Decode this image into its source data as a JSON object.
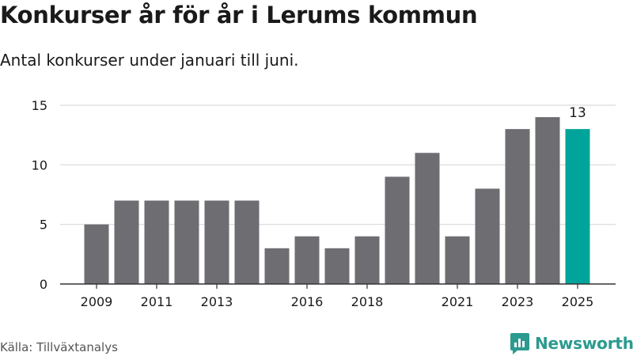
{
  "title": "Konkurser år för år i Lerums kommun",
  "subtitle": "Antal konkurser under januari till juni.",
  "source": "Källa: Tillväxtanalys",
  "brand": "Newsworthy",
  "colors": {
    "bar": "#6e6d72",
    "highlight": "#00a49a",
    "grid": "#d9d9d9",
    "axis": "#333333",
    "brand": "#2b9a8f"
  },
  "chart_data": {
    "type": "bar",
    "categories": [
      "2009",
      "2010",
      "2011",
      "2012",
      "2013",
      "2014",
      "2015",
      "2016",
      "2017",
      "2018",
      "2019",
      "2020",
      "2021",
      "2022",
      "2023",
      "2024",
      "2025"
    ],
    "values": [
      5,
      7,
      7,
      7,
      7,
      7,
      3,
      4,
      3,
      4,
      9,
      11,
      4,
      8,
      13,
      14,
      13
    ],
    "x_tick_labels": [
      "2009",
      "2011",
      "2013",
      "2016",
      "2018",
      "2021",
      "2023",
      "2025"
    ],
    "y_ticks": [
      0,
      5,
      10,
      15
    ],
    "ylim": [
      0,
      15
    ],
    "highlight": {
      "category": "2025",
      "label": "13"
    },
    "xlabel": "",
    "ylabel": "",
    "grid": true
  }
}
